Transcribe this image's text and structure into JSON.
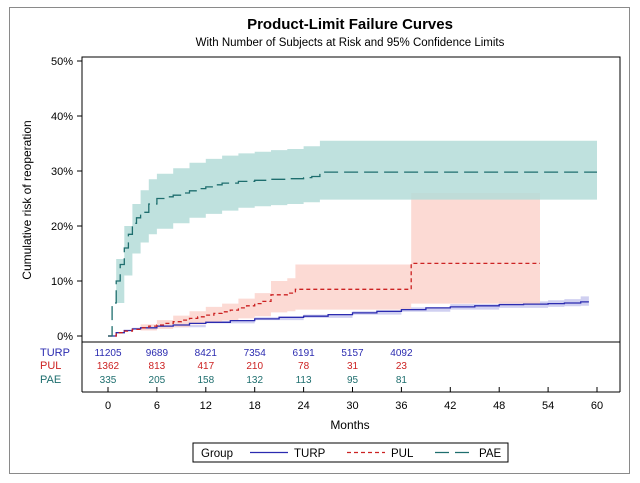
{
  "chart_data": {
    "type": "line",
    "title": "Product-Limit Failure Curves",
    "subtitle": "With Number of Subjects at Risk and 95% Confidence Limits",
    "xlabel": "Months",
    "ylabel": "Cumulative risk of reoperation",
    "xlim": [
      -4,
      62
    ],
    "ylim": [
      0,
      50
    ],
    "x_ticks": [
      0,
      6,
      12,
      18,
      24,
      30,
      36,
      42,
      48,
      54,
      60
    ],
    "y_ticks": [
      0,
      10,
      20,
      30,
      40,
      50
    ],
    "y_tick_labels": [
      "0%",
      "10%",
      "20%",
      "30%",
      "40%",
      "50%"
    ],
    "grid": false,
    "legend": {
      "title": "Group",
      "placement": "bottom",
      "entries": [
        "TURP",
        "PUL",
        "PAE"
      ]
    },
    "series": [
      {
        "name": "TURP",
        "color": "#2b2bb0",
        "band_color": "#c8c8ee",
        "dash": "solid",
        "points": [
          [
            0,
            0
          ],
          [
            1,
            0.6
          ],
          [
            2,
            1.0
          ],
          [
            3,
            1.3
          ],
          [
            4,
            1.5
          ],
          [
            6,
            1.8
          ],
          [
            8,
            2.0
          ],
          [
            10,
            2.3
          ],
          [
            12,
            2.5
          ],
          [
            15,
            2.8
          ],
          [
            18,
            3.1
          ],
          [
            21,
            3.4
          ],
          [
            24,
            3.6
          ],
          [
            27,
            3.9
          ],
          [
            30,
            4.2
          ],
          [
            33,
            4.5
          ],
          [
            36,
            4.8
          ],
          [
            39,
            5.1
          ],
          [
            42,
            5.3
          ],
          [
            45,
            5.5
          ],
          [
            48,
            5.7
          ],
          [
            51,
            5.8
          ],
          [
            54,
            5.9
          ],
          [
            56,
            6.0
          ],
          [
            58,
            6.2
          ],
          [
            59,
            6.2
          ]
        ],
        "lower": [
          [
            0,
            0
          ],
          [
            3,
            1.1
          ],
          [
            6,
            1.6
          ],
          [
            12,
            2.3
          ],
          [
            18,
            2.9
          ],
          [
            24,
            3.3
          ],
          [
            30,
            3.9
          ],
          [
            36,
            4.4
          ],
          [
            42,
            4.8
          ],
          [
            48,
            5.1
          ],
          [
            54,
            5.3
          ],
          [
            56,
            5.4
          ],
          [
            58,
            5.5
          ],
          [
            59,
            5.5
          ]
        ],
        "upper": [
          [
            0,
            0
          ],
          [
            3,
            1.5
          ],
          [
            6,
            2.0
          ],
          [
            12,
            2.7
          ],
          [
            18,
            3.4
          ],
          [
            24,
            3.9
          ],
          [
            30,
            4.5
          ],
          [
            36,
            5.2
          ],
          [
            42,
            5.8
          ],
          [
            48,
            6.3
          ],
          [
            54,
            6.5
          ],
          [
            56,
            6.7
          ],
          [
            58,
            7.2
          ],
          [
            59,
            7.2
          ]
        ]
      },
      {
        "name": "PUL",
        "color": "#cc2222",
        "band_color": "#fbd3cc",
        "dash": "4,3",
        "points": [
          [
            0,
            0
          ],
          [
            1,
            0.6
          ],
          [
            2,
            0.9
          ],
          [
            3,
            1.2
          ],
          [
            4,
            1.5
          ],
          [
            5,
            1.8
          ],
          [
            6,
            2.0
          ],
          [
            7,
            2.3
          ],
          [
            8,
            2.6
          ],
          [
            9,
            2.9
          ],
          [
            10,
            3.2
          ],
          [
            11,
            3.5
          ],
          [
            12,
            3.8
          ],
          [
            13,
            4.1
          ],
          [
            14,
            4.4
          ],
          [
            15,
            4.7
          ],
          [
            16,
            5.1
          ],
          [
            17,
            5.5
          ],
          [
            18,
            5.9
          ],
          [
            19,
            6.3
          ],
          [
            20,
            7.5
          ],
          [
            22,
            7.8
          ],
          [
            23,
            8.5
          ],
          [
            37,
            8.5
          ],
          [
            37.2,
            13.2
          ],
          [
            53,
            13.2
          ]
        ],
        "lower": [
          [
            0,
            0
          ],
          [
            4,
            1.0
          ],
          [
            6,
            1.3
          ],
          [
            8,
            1.6
          ],
          [
            10,
            2.1
          ],
          [
            12,
            2.5
          ],
          [
            14,
            2.8
          ],
          [
            16,
            3.2
          ],
          [
            18,
            3.6
          ],
          [
            20,
            4.3
          ],
          [
            22,
            4.5
          ],
          [
            23,
            4.8
          ],
          [
            37,
            4.8
          ],
          [
            37.2,
            5.9
          ],
          [
            53,
            5.9
          ]
        ],
        "upper": [
          [
            0,
            0
          ],
          [
            4,
            2.1
          ],
          [
            6,
            2.9
          ],
          [
            8,
            3.7
          ],
          [
            10,
            4.5
          ],
          [
            12,
            5.3
          ],
          [
            14,
            5.9
          ],
          [
            16,
            6.8
          ],
          [
            18,
            7.8
          ],
          [
            20,
            10.0
          ],
          [
            22,
            10.5
          ],
          [
            23,
            13.0
          ],
          [
            37,
            13.0
          ],
          [
            37.2,
            26.0
          ],
          [
            53,
            26.0
          ]
        ]
      },
      {
        "name": "PAE",
        "color": "#1e6e6e",
        "band_color": "#b4dcd8",
        "dash": "14,6",
        "points": [
          [
            0,
            0
          ],
          [
            0.5,
            6
          ],
          [
            1,
            10
          ],
          [
            1.5,
            13
          ],
          [
            2,
            16
          ],
          [
            2.5,
            18.5
          ],
          [
            3,
            20.5
          ],
          [
            3.5,
            21.5
          ],
          [
            4,
            22.5
          ],
          [
            5,
            24
          ],
          [
            6,
            25
          ],
          [
            7,
            25.3
          ],
          [
            8,
            25.6
          ],
          [
            9,
            26
          ],
          [
            10,
            26.4
          ],
          [
            11,
            26.8
          ],
          [
            12,
            27.1
          ],
          [
            13,
            27.5
          ],
          [
            14,
            27.8
          ],
          [
            16,
            28.1
          ],
          [
            18,
            28.3
          ],
          [
            20,
            28.5
          ],
          [
            22,
            28.6
          ],
          [
            24,
            28.8
          ],
          [
            25,
            29
          ],
          [
            26,
            29.8
          ],
          [
            60,
            29.8
          ]
        ],
        "lower": [
          [
            0,
            0
          ],
          [
            1,
            6
          ],
          [
            2,
            11
          ],
          [
            3,
            15
          ],
          [
            4,
            17
          ],
          [
            5,
            18.5
          ],
          [
            6,
            19.5
          ],
          [
            8,
            20.5
          ],
          [
            10,
            21.5
          ],
          [
            12,
            22.2
          ],
          [
            14,
            22.8
          ],
          [
            16,
            23.3
          ],
          [
            18,
            23.6
          ],
          [
            20,
            23.8
          ],
          [
            22,
            24
          ],
          [
            24,
            24.3
          ],
          [
            26,
            24.8
          ],
          [
            60,
            24.8
          ]
        ],
        "upper": [
          [
            0,
            0
          ],
          [
            1,
            14
          ],
          [
            2,
            20
          ],
          [
            3,
            24
          ],
          [
            4,
            26.5
          ],
          [
            5,
            28.5
          ],
          [
            6,
            29.5
          ],
          [
            8,
            30.5
          ],
          [
            10,
            31.5
          ],
          [
            12,
            32.2
          ],
          [
            14,
            32.8
          ],
          [
            16,
            33.2
          ],
          [
            18,
            33.5
          ],
          [
            20,
            33.8
          ],
          [
            22,
            34
          ],
          [
            24,
            34.5
          ],
          [
            26,
            35.5
          ],
          [
            60,
            35.5
          ]
        ]
      }
    ],
    "at_risk": {
      "times": [
        0,
        6,
        12,
        18,
        24,
        30,
        36
      ],
      "rows": [
        {
          "label": "TURP",
          "color": "#2b2bb0",
          "values": [
            "11205",
            "9689",
            "8421",
            "7354",
            "6191",
            "5157",
            "4092"
          ]
        },
        {
          "label": "PUL",
          "color": "#cc2222",
          "values": [
            "1362",
            "813",
            "417",
            "210",
            "78",
            "31",
            "23"
          ]
        },
        {
          "label": "PAE",
          "color": "#1e6e6e",
          "values": [
            "335",
            "205",
            "158",
            "132",
            "113",
            "95",
            "81"
          ]
        }
      ]
    }
  }
}
